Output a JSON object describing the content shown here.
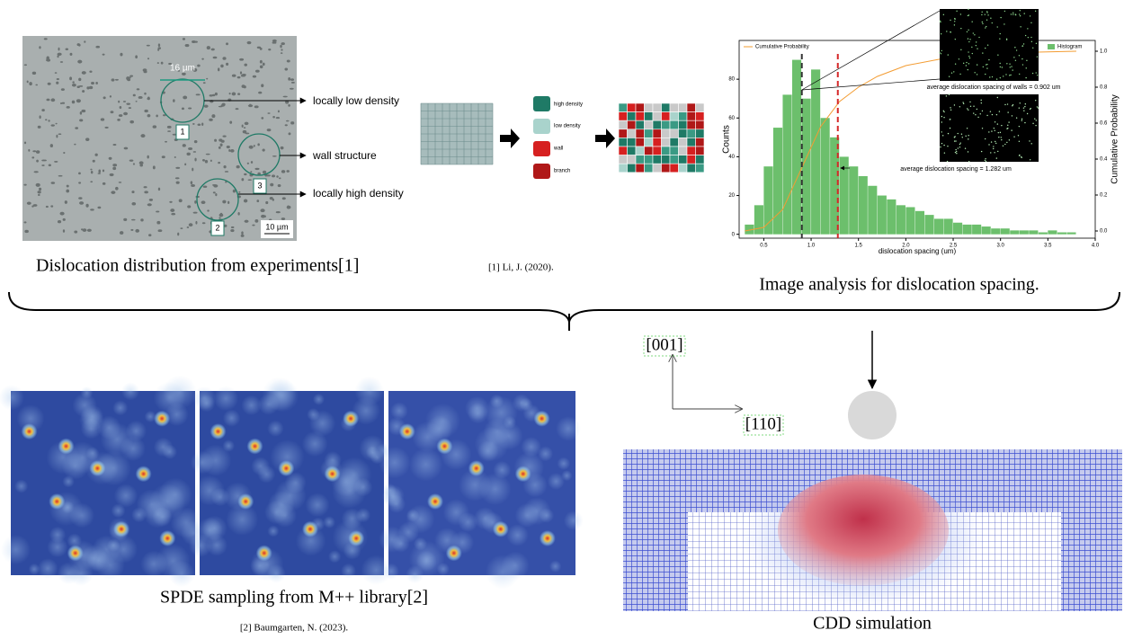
{
  "experiment": {
    "scale_top": "16 µm",
    "labels": [
      "locally low density",
      "wall structure",
      "locally high density"
    ],
    "markers": [
      "1",
      "3",
      "2"
    ],
    "scale_bar": "10 µm",
    "caption": "Dislocation distribution from experiments[1]",
    "reference": "[1] Li, J. (2020)."
  },
  "classification": {
    "legend": [
      "high density",
      "low density",
      "wall",
      "branch"
    ]
  },
  "histogram": {
    "type": "histogram",
    "color": "#6cbf6c",
    "name": "Histogram",
    "bins": [
      0.3,
      0.4,
      0.5,
      0.6,
      0.7,
      0.8,
      0.9,
      1.0,
      1.1,
      1.2,
      1.3,
      1.4,
      1.5,
      1.6,
      1.7,
      1.8,
      1.9,
      2.0,
      2.1,
      2.2,
      2.3,
      2.4,
      2.5,
      2.6,
      2.7,
      2.8,
      2.9,
      3.0,
      3.1,
      3.2,
      3.3,
      3.4,
      3.5,
      3.6,
      3.7,
      3.8
    ],
    "counts": [
      5,
      15,
      35,
      55,
      72,
      90,
      70,
      85,
      60,
      50,
      40,
      35,
      30,
      25,
      20,
      18,
      15,
      14,
      12,
      10,
      8,
      8,
      6,
      5,
      5,
      4,
      3,
      3,
      2,
      2,
      2,
      1,
      2,
      1,
      1
    ],
    "cumulative": {
      "name": "Cumulative Probability",
      "color": "#f39c32",
      "x": [
        0.3,
        0.5,
        0.7,
        0.9,
        1.1,
        1.3,
        1.5,
        1.7,
        2.0,
        2.5,
        3.0,
        3.8
      ],
      "values": [
        0,
        0.02,
        0.12,
        0.35,
        0.58,
        0.72,
        0.8,
        0.86,
        0.92,
        0.97,
        0.99,
        1.0
      ]
    },
    "xlabel": "dislocation spacing (um)",
    "ylabel": "Counts",
    "y2label": "Cumulative Probability",
    "xlim": [
      0.24,
      4.0
    ],
    "ylim": [
      -2,
      100
    ],
    "y2lim": [
      -0.04,
      1.06
    ],
    "xticks": [
      0.5,
      {
        "value": 1,
        "label": "1.0"
      },
      1.5,
      {
        "value": 2,
        "label": "2.0"
      },
      2.5,
      {
        "value": 3,
        "label": "3.0"
      },
      3.5,
      {
        "value": 4,
        "label": "4.0"
      }
    ],
    "yticks": [
      0,
      20,
      40,
      60,
      80
    ],
    "y2ticks": [
      {
        "value": 0,
        "label": "0.0"
      },
      0.2,
      0.4,
      0.6,
      0.8,
      {
        "value": 1,
        "label": "1.0"
      }
    ],
    "markers": [
      {
        "value": 0.902,
        "color": "#333333",
        "label": "average dislocation spacing of walls = 0.902 um"
      },
      {
        "value": 1.282,
        "color": "#d62728",
        "label": "average dislocation spacing = 1.282 um"
      }
    ],
    "caption": "Image analysis for dislocation spacing."
  },
  "spde": {
    "caption": "SPDE sampling from M++ library[2]",
    "reference": "[2] Baumgarten, N. (2023)."
  },
  "cdd": {
    "axes": [
      "[001]",
      "[110]"
    ],
    "caption": "CDD simulation"
  }
}
